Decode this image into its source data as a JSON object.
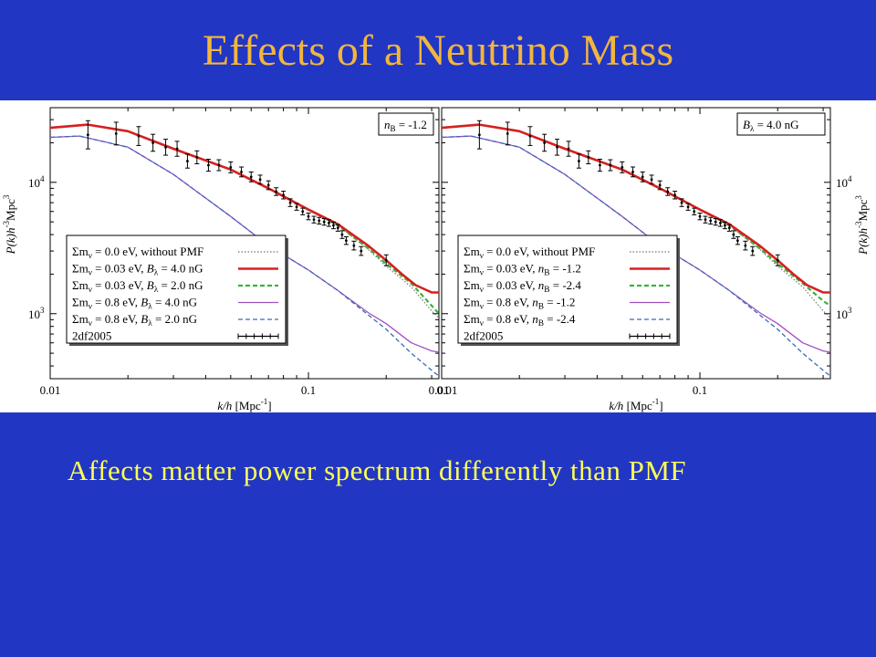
{
  "slide": {
    "title": "Effects of a Neutrino Mass",
    "body": "Affects matter power spectrum differently than PMF"
  },
  "colors": {
    "background": "#2236c4",
    "title": "#f2b63d",
    "body_text": "#ffff55",
    "red": "#d62020",
    "green": "#3cb33c",
    "purple": "#a050c0",
    "blue": "#3a6ab8",
    "dotted": "#777777",
    "data": "#000000"
  },
  "chart_data": [
    {
      "type": "line",
      "tag": "n_B = -1.2",
      "tag_parts": {
        "var": "n",
        "sub": "B",
        "rest": " = -1.2"
      },
      "xlabel_parts": {
        "pre": "k/h",
        "post": " [Mpc",
        "exp": "-1",
        "close": "]"
      },
      "ylabel_side": "left",
      "x_scale": "log",
      "y_scale": "log",
      "xlim": [
        0.01,
        0.32
      ],
      "ylim": [
        320,
        37000
      ],
      "xticks": [
        "0.01",
        "0.1",
        "0.01"
      ],
      "yticks": [
        {
          "base": "10",
          "exp": "4"
        },
        {
          "base": "10",
          "exp": "3"
        }
      ],
      "legend": {
        "placement": "bottom-left",
        "entries": [
          {
            "parts": [
              [
                "Σm",
                "n"
              ],
              [
                "ν",
                "sub"
              ],
              [
                " = 0.0 eV, without PMF",
                "n"
              ]
            ]
          },
          {
            "parts": [
              [
                "Σm",
                "n"
              ],
              [
                "ν",
                "sub"
              ],
              [
                " = 0.03 eV, ",
                "n"
              ],
              [
                "B",
                "i"
              ],
              [
                "λ",
                "sub"
              ],
              [
                " = 4.0 nG",
                "n"
              ]
            ]
          },
          {
            "parts": [
              [
                "Σm",
                "n"
              ],
              [
                "ν",
                "sub"
              ],
              [
                " = 0.03 eV, ",
                "n"
              ],
              [
                "B",
                "i"
              ],
              [
                "λ",
                "sub"
              ],
              [
                " = 2.0 nG",
                "n"
              ]
            ]
          },
          {
            "parts": [
              [
                "Σm",
                "n"
              ],
              [
                "ν",
                "sub"
              ],
              [
                " = 0.8 eV, ",
                "n"
              ],
              [
                "B",
                "i"
              ],
              [
                "λ",
                "sub"
              ],
              [
                " = 4.0 nG",
                "n"
              ]
            ]
          },
          {
            "parts": [
              [
                "Σm",
                "n"
              ],
              [
                "ν",
                "sub"
              ],
              [
                " = 0.8 eV, ",
                "n"
              ],
              [
                "B",
                "i"
              ],
              [
                "λ",
                "sub"
              ],
              [
                " = 2.0 nG",
                "n"
              ]
            ]
          },
          {
            "parts": [
              [
                "2df2005",
                "n"
              ]
            ]
          }
        ]
      },
      "series": [
        {
          "style": "dotted",
          "color": "#777777",
          "x": [
            0.01,
            0.014,
            0.02,
            0.03,
            0.05,
            0.07,
            0.1,
            0.13,
            0.17,
            0.2,
            0.25,
            0.3,
            0.32
          ],
          "y": [
            26000,
            27500,
            24500,
            18000,
            12500,
            9000,
            6200,
            4700,
            3100,
            2300,
            1600,
            1050,
            930
          ]
        },
        {
          "style": "solid",
          "color": "#d62020",
          "x": [
            0.01,
            0.014,
            0.02,
            0.03,
            0.05,
            0.07,
            0.1,
            0.13,
            0.17,
            0.2,
            0.23,
            0.26,
            0.3,
            0.32
          ],
          "y": [
            26000,
            27500,
            24500,
            18000,
            12500,
            9000,
            6200,
            4800,
            3300,
            2550,
            2000,
            1650,
            1450,
            1450
          ]
        },
        {
          "style": "dashed",
          "color": "#3cb33c",
          "x": [
            0.01,
            0.014,
            0.02,
            0.03,
            0.05,
            0.07,
            0.1,
            0.13,
            0.17,
            0.2,
            0.25,
            0.3,
            0.32
          ],
          "y": [
            26000,
            27500,
            24500,
            18000,
            12500,
            9000,
            6200,
            4700,
            3150,
            2400,
            1700,
            1150,
            1000
          ]
        },
        {
          "style": "solid",
          "color": "#a050c0",
          "x": [
            0.01,
            0.013,
            0.02,
            0.03,
            0.05,
            0.07,
            0.1,
            0.13,
            0.17,
            0.2,
            0.25,
            0.3,
            0.32
          ],
          "y": [
            22000,
            22500,
            18500,
            11500,
            5500,
            3300,
            2150,
            1500,
            1020,
            840,
            600,
            520,
            510
          ]
        },
        {
          "style": "dashed",
          "color": "#3a6ab8",
          "x": [
            0.01,
            0.013,
            0.02,
            0.03,
            0.05,
            0.07,
            0.1,
            0.13,
            0.17,
            0.2,
            0.25,
            0.3,
            0.32
          ],
          "y": [
            22000,
            22500,
            18500,
            11500,
            5500,
            3300,
            2150,
            1500,
            980,
            760,
            500,
            370,
            335
          ]
        }
      ],
      "observations": {
        "k": [
          0.014,
          0.018,
          0.022,
          0.025,
          0.028,
          0.031,
          0.034,
          0.037,
          0.041,
          0.045,
          0.05,
          0.055,
          0.06,
          0.065,
          0.07,
          0.075,
          0.08,
          0.085,
          0.09,
          0.095,
          0.1,
          0.105,
          0.11,
          0.115,
          0.12,
          0.125,
          0.13,
          0.135,
          0.14,
          0.15,
          0.16,
          0.2
        ],
        "p": [
          23000,
          23500,
          22500,
          20000,
          18500,
          18000,
          14500,
          15500,
          13500,
          13500,
          13000,
          12000,
          11000,
          10500,
          9500,
          8500,
          8000,
          7000,
          6500,
          6000,
          5500,
          5200,
          5100,
          5000,
          4900,
          4700,
          4500,
          4000,
          3600,
          3300,
          3000,
          2550
        ],
        "err": [
          0.28,
          0.22,
          0.18,
          0.16,
          0.15,
          0.14,
          0.13,
          0.12,
          0.11,
          0.1,
          0.1,
          0.09,
          0.09,
          0.08,
          0.08,
          0.07,
          0.07,
          0.07,
          0.06,
          0.06,
          0.06,
          0.06,
          0.06,
          0.06,
          0.06,
          0.06,
          0.06,
          0.07,
          0.07,
          0.08,
          0.08,
          0.1
        ]
      }
    },
    {
      "type": "line",
      "tag": "B_λ = 4.0 nG",
      "tag_parts": {
        "var": "B",
        "sub": "λ",
        "rest": " = 4.0 nG"
      },
      "xlabel_parts": {
        "pre": "k/h",
        "post": " [Mpc",
        "exp": "-1",
        "close": "]"
      },
      "ylabel_side": "right",
      "x_scale": "log",
      "y_scale": "log",
      "xlim": [
        0.01,
        0.32
      ],
      "ylim": [
        320,
        37000
      ],
      "xticks": [
        "0.01",
        "0.1"
      ],
      "yticks": [
        {
          "base": "10",
          "exp": "4"
        },
        {
          "base": "10",
          "exp": "3"
        }
      ],
      "ylabel_parts": {
        "pre": "P(k)h",
        "exp": "-3",
        "post": "Mpc",
        "exp2": "3"
      },
      "legend": {
        "placement": "bottom-left",
        "entries": [
          {
            "parts": [
              [
                "Σm",
                "n"
              ],
              [
                "ν",
                "sub"
              ],
              [
                " = 0.0 eV, without PMF",
                "n"
              ]
            ]
          },
          {
            "parts": [
              [
                "Σm",
                "n"
              ],
              [
                "ν",
                "sub"
              ],
              [
                " = 0.03 eV, ",
                "n"
              ],
              [
                "n",
                "i"
              ],
              [
                "B",
                "sub"
              ],
              [
                " = -1.2",
                "n"
              ]
            ]
          },
          {
            "parts": [
              [
                "Σm",
                "n"
              ],
              [
                "ν",
                "sub"
              ],
              [
                " = 0.03 eV, ",
                "n"
              ],
              [
                "n",
                "i"
              ],
              [
                "B",
                "sub"
              ],
              [
                " = -2.4",
                "n"
              ]
            ]
          },
          {
            "parts": [
              [
                "Σm",
                "n"
              ],
              [
                "ν",
                "sub"
              ],
              [
                " = 0.8 eV, ",
                "n"
              ],
              [
                "n",
                "i"
              ],
              [
                "B",
                "sub"
              ],
              [
                " = -1.2",
                "n"
              ]
            ]
          },
          {
            "parts": [
              [
                "Σm",
                "n"
              ],
              [
                "ν",
                "sub"
              ],
              [
                " = 0.8 eV, ",
                "n"
              ],
              [
                "n",
                "i"
              ],
              [
                "B",
                "sub"
              ],
              [
                " = -2.4",
                "n"
              ]
            ]
          },
          {
            "parts": [
              [
                "2df2005",
                "n"
              ]
            ]
          }
        ]
      },
      "series": [
        {
          "style": "dotted",
          "color": "#777777",
          "x": [
            0.01,
            0.014,
            0.02,
            0.03,
            0.05,
            0.07,
            0.1,
            0.13,
            0.17,
            0.2,
            0.25,
            0.3,
            0.32
          ],
          "y": [
            26000,
            27500,
            24500,
            18000,
            12500,
            9000,
            6200,
            4700,
            3100,
            2300,
            1600,
            1050,
            930
          ]
        },
        {
          "style": "solid",
          "color": "#d62020",
          "x": [
            0.01,
            0.014,
            0.02,
            0.03,
            0.05,
            0.07,
            0.1,
            0.13,
            0.17,
            0.2,
            0.23,
            0.26,
            0.3,
            0.32
          ],
          "y": [
            26000,
            27500,
            24500,
            18000,
            12500,
            9000,
            6200,
            4800,
            3300,
            2550,
            2000,
            1650,
            1450,
            1450
          ]
        },
        {
          "style": "dashed",
          "color": "#3cb33c",
          "x": [
            0.01,
            0.014,
            0.02,
            0.03,
            0.05,
            0.07,
            0.1,
            0.13,
            0.17,
            0.2,
            0.25,
            0.3,
            0.32
          ],
          "y": [
            26000,
            27500,
            24500,
            18000,
            12500,
            9000,
            6200,
            4700,
            3150,
            2400,
            1700,
            1250,
            1150
          ]
        },
        {
          "style": "solid",
          "color": "#a050c0",
          "x": [
            0.01,
            0.013,
            0.02,
            0.03,
            0.05,
            0.07,
            0.1,
            0.13,
            0.17,
            0.2,
            0.25,
            0.3,
            0.32
          ],
          "y": [
            22000,
            22500,
            18500,
            11500,
            5500,
            3300,
            2150,
            1500,
            1020,
            840,
            600,
            520,
            510
          ]
        },
        {
          "style": "dashed",
          "color": "#3a6ab8",
          "x": [
            0.01,
            0.013,
            0.02,
            0.03,
            0.05,
            0.07,
            0.1,
            0.13,
            0.17,
            0.2,
            0.25,
            0.3,
            0.32
          ],
          "y": [
            22000,
            22500,
            18500,
            11500,
            5500,
            3300,
            2150,
            1500,
            980,
            760,
            500,
            370,
            335
          ]
        }
      ],
      "observations": {
        "k": [
          0.014,
          0.018,
          0.022,
          0.025,
          0.028,
          0.031,
          0.034,
          0.037,
          0.041,
          0.045,
          0.05,
          0.055,
          0.06,
          0.065,
          0.07,
          0.075,
          0.08,
          0.085,
          0.09,
          0.095,
          0.1,
          0.105,
          0.11,
          0.115,
          0.12,
          0.125,
          0.13,
          0.135,
          0.14,
          0.15,
          0.16,
          0.2
        ],
        "p": [
          23000,
          23500,
          22500,
          20000,
          18500,
          18000,
          14500,
          15500,
          13500,
          13500,
          13000,
          12000,
          11000,
          10500,
          9500,
          8500,
          8000,
          7000,
          6500,
          6000,
          5500,
          5200,
          5100,
          5000,
          4900,
          4700,
          4500,
          4000,
          3600,
          3300,
          3000,
          2550
        ],
        "err": [
          0.28,
          0.22,
          0.18,
          0.16,
          0.15,
          0.14,
          0.13,
          0.12,
          0.11,
          0.1,
          0.1,
          0.09,
          0.09,
          0.08,
          0.08,
          0.07,
          0.07,
          0.07,
          0.06,
          0.06,
          0.06,
          0.06,
          0.06,
          0.06,
          0.06,
          0.06,
          0.06,
          0.07,
          0.07,
          0.08,
          0.08,
          0.1
        ]
      }
    }
  ],
  "left_axis_label": {
    "pre": "P(k)h",
    "exp": "-3",
    "post": "Mpc",
    "exp2": "3"
  }
}
